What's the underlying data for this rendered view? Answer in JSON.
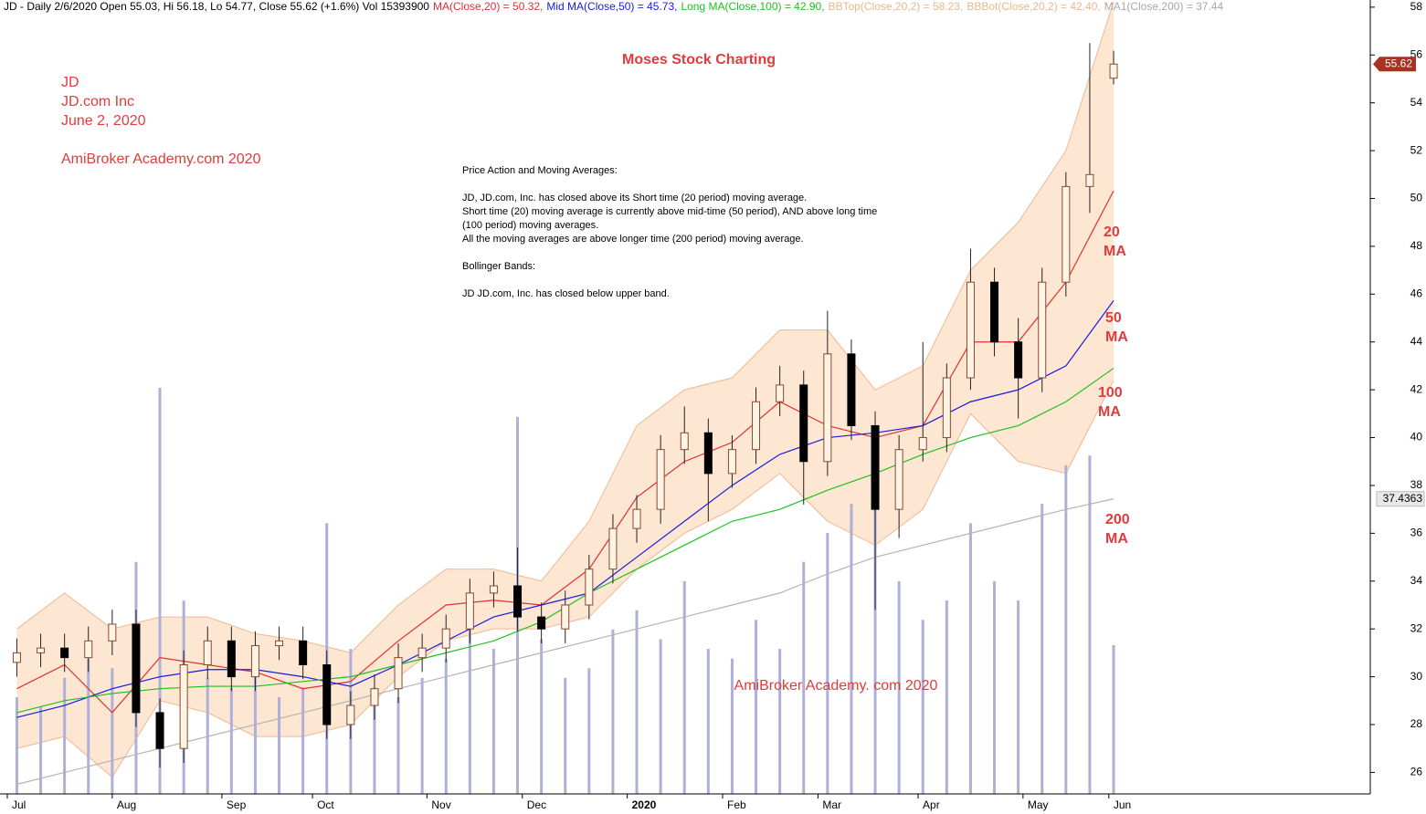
{
  "header": {
    "segments": [
      {
        "text": "JD - Daily 2/6/2020 Open 55.03, Hi 56.18, Lo 54.77, Close 55.62 (+1.6%) Vol 15393900",
        "color": "#000000"
      },
      {
        "text": "MA(Close,20) = 50.32,",
        "color": "#e03030"
      },
      {
        "text": "Mid MA(Close,50) = 45.73,",
        "color": "#1a1ae0"
      },
      {
        "text": "Long MA(Close,100) = 42.90,",
        "color": "#20c020"
      },
      {
        "text": "BBTop(Close,20,2) = 58.23,",
        "color": "#e8b888"
      },
      {
        "text": "BBBot(Close,20,2) = 42.40,",
        "color": "#e8b888"
      },
      {
        "text": "MA1(Close,200) = 37.44",
        "color": "#a8a8a8"
      }
    ]
  },
  "labels": {
    "symbol": "JD",
    "company": "JD.com Inc",
    "date": "June 2, 2020",
    "brand": "AmiBroker Academy.com 2020",
    "title": "Moses Stock Charting",
    "watermark": "AmiBroker Academy. com 2020"
  },
  "notes": [
    "Price Action and Moving Averages:",
    "JD, JD.com, Inc. has closed above its Short time (20 period) moving average.",
    "Short time (20) moving average is currently above mid-time (50 period), AND above long time",
    "(100 period) moving averages.",
    "All the moving averages are above longer time (200 period) moving average.",
    "Bollinger Bands:",
    "JD JD.com, Inc. has closed below upper band."
  ],
  "ma_labels": [
    [
      "20",
      "MA"
    ],
    [
      "50",
      "MA"
    ],
    [
      "100",
      "MA"
    ],
    [
      "200",
      "MA"
    ]
  ],
  "chart_data": {
    "type": "candlestick",
    "x": [
      2,
      7,
      12,
      17,
      22,
      27,
      32,
      37,
      42,
      47,
      52,
      57,
      62,
      67,
      72,
      77,
      82,
      87,
      92,
      97,
      102,
      107,
      112,
      117,
      122,
      127,
      132,
      137,
      142,
      147,
      152,
      157,
      162,
      167,
      172,
      177,
      182,
      187,
      192,
      197,
      202,
      207,
      212,
      217,
      222,
      227,
      232
    ],
    "open": [
      30.6,
      31.0,
      31.2,
      30.8,
      31.5,
      32.2,
      28.5,
      27.0,
      30.5,
      31.5,
      30.0,
      31.3,
      31.5,
      30.5,
      28.0,
      28.8,
      29.5,
      30.8,
      31.2,
      32.0,
      33.5,
      33.8,
      32.5,
      32.0,
      33.0,
      34.5,
      36.2,
      37.0,
      39.5,
      40.2,
      38.5,
      39.5,
      41.5,
      42.2,
      39.0,
      43.5,
      40.5,
      37.0,
      39.5,
      40.0,
      42.5,
      46.5,
      44.0,
      42.5,
      46.5,
      50.5,
      55.03
    ],
    "high": [
      31.6,
      31.8,
      31.8,
      32.1,
      32.8,
      32.8,
      29.1,
      31.1,
      32.1,
      32.1,
      31.9,
      32.1,
      32.1,
      31.1,
      29.4,
      30.1,
      31.4,
      31.8,
      32.6,
      34.1,
      34.4,
      35.4,
      33.1,
      33.6,
      35.1,
      36.8,
      37.6,
      40.1,
      41.3,
      40.8,
      40.1,
      42.1,
      43.0,
      42.8,
      45.3,
      44.1,
      41.1,
      40.1,
      44.0,
      43.1,
      47.9,
      47.1,
      45.0,
      47.1,
      51.1,
      56.5,
      56.18
    ],
    "low": [
      30.0,
      30.4,
      30.2,
      30.2,
      30.9,
      27.9,
      26.2,
      26.4,
      29.9,
      29.4,
      29.4,
      30.7,
      29.9,
      27.4,
      27.4,
      28.2,
      28.9,
      30.2,
      30.6,
      31.4,
      32.9,
      31.9,
      31.4,
      31.4,
      32.4,
      33.9,
      35.6,
      36.4,
      38.9,
      36.5,
      37.9,
      38.9,
      40.9,
      37.2,
      38.4,
      39.9,
      32.8,
      35.8,
      39.0,
      39.4,
      42.0,
      43.4,
      40.8,
      41.9,
      45.9,
      49.4,
      54.77
    ],
    "close": [
      31.0,
      31.2,
      30.8,
      31.5,
      32.2,
      28.5,
      27.0,
      30.5,
      31.5,
      30.0,
      31.3,
      31.5,
      30.5,
      28.0,
      28.8,
      29.5,
      30.8,
      31.2,
      32.0,
      33.5,
      33.8,
      32.5,
      32.0,
      33.0,
      34.5,
      36.2,
      37.0,
      39.5,
      40.2,
      38.5,
      39.5,
      41.5,
      42.2,
      39.0,
      43.5,
      40.5,
      37.0,
      39.5,
      40.0,
      42.5,
      46.5,
      44.0,
      42.5,
      46.5,
      50.5,
      51.0,
      55.62
    ],
    "volume": [
      10000000,
      9000000,
      12000000,
      14000000,
      13000000,
      24000000,
      42000000,
      20000000,
      12000000,
      11000000,
      13000000,
      10000000,
      11000000,
      28000000,
      15000000,
      11000000,
      10000000,
      12000000,
      14000000,
      18000000,
      15000000,
      39000000,
      16000000,
      12000000,
      13000000,
      17000000,
      19000000,
      16000000,
      22000000,
      15000000,
      14000000,
      18000000,
      15000000,
      24000000,
      27000000,
      30000000,
      35000000,
      22000000,
      18000000,
      20000000,
      28000000,
      22000000,
      20000000,
      30000000,
      34000000,
      35000000,
      15393900
    ],
    "volume_color": "#aeb0d8",
    "ma_x": [
      2,
      12,
      22,
      32,
      42,
      52,
      62,
      72,
      82,
      92,
      102,
      112,
      122,
      132,
      142,
      152,
      162,
      172,
      182,
      192,
      202,
      212,
      222,
      232
    ],
    "lines": [
      {
        "color": "#e03030",
        "values": [
          29.5,
          30.5,
          28.5,
          30.8,
          30.5,
          30.2,
          29.5,
          29.8,
          31.5,
          33.0,
          33.2,
          33.0,
          34.5,
          37.5,
          39.0,
          39.8,
          41.5,
          40.5,
          40.0,
          40.5,
          44.0,
          44.0,
          46.5,
          50.32
        ]
      },
      {
        "color": "#1a1ae0",
        "values": [
          28.3,
          28.8,
          29.5,
          30.0,
          30.3,
          30.3,
          30.0,
          29.6,
          30.5,
          31.5,
          32.5,
          33.0,
          33.5,
          35.0,
          36.5,
          38.0,
          39.3,
          40.0,
          40.2,
          40.5,
          41.5,
          42.0,
          43.0,
          45.73
        ]
      },
      {
        "color": "#20c020",
        "values": [
          28.5,
          29.0,
          29.3,
          29.5,
          29.6,
          29.6,
          29.8,
          30.0,
          30.5,
          31.0,
          31.5,
          32.3,
          33.5,
          34.5,
          35.5,
          36.5,
          37.0,
          37.8,
          38.5,
          39.3,
          40.0,
          40.5,
          41.5,
          42.9
        ]
      },
      {
        "color": "#b4b4b4",
        "values": [
          25.5,
          26.0,
          26.5,
          27.0,
          27.5,
          28.0,
          28.5,
          29.0,
          29.5,
          30.0,
          30.5,
          31.0,
          31.5,
          32.0,
          32.5,
          33.0,
          33.5,
          34.3,
          35.0,
          35.5,
          36.0,
          36.5,
          37.0,
          37.44
        ]
      }
    ],
    "band": {
      "color": "#f0b890",
      "fill": "#fde6d2",
      "top": [
        32.0,
        33.5,
        32.0,
        32.5,
        32.5,
        31.8,
        31.5,
        31.0,
        33.0,
        34.5,
        34.5,
        34.0,
        36.5,
        40.5,
        42.0,
        42.5,
        44.5,
        44.5,
        42.0,
        43.0,
        47.0,
        49.0,
        52.0,
        58.23
      ],
      "bottom": [
        27.0,
        27.5,
        25.8,
        29.0,
        28.5,
        27.5,
        27.5,
        28.0,
        30.0,
        31.5,
        32.0,
        32.0,
        32.5,
        34.5,
        36.0,
        37.0,
        38.5,
        36.5,
        35.5,
        37.0,
        41.0,
        39.0,
        38.5,
        42.4
      ]
    },
    "ma200_marker": 37.4363,
    "xlim": [
      0,
      285
    ],
    "xticks": [
      {
        "value": 0,
        "label": "Jul"
      },
      {
        "value": 22,
        "label": "Aug"
      },
      {
        "value": 45,
        "label": "Sep"
      },
      {
        "value": 64,
        "label": "Oct"
      },
      {
        "value": 88,
        "label": "Nov"
      },
      {
        "value": 108,
        "label": "Dec"
      },
      {
        "value": 130,
        "label": "2020"
      },
      {
        "value": 150,
        "label": "Feb"
      },
      {
        "value": 170,
        "label": "Mar"
      },
      {
        "value": 191,
        "label": "Apr"
      },
      {
        "value": 213,
        "label": "May"
      },
      {
        "value": 231,
        "label": "Jun"
      }
    ],
    "ylim": [
      25.1,
      58.3
    ],
    "yticks": [
      26,
      28,
      30,
      32,
      34,
      36,
      38,
      40,
      42,
      44,
      46,
      48,
      50,
      52,
      54,
      56,
      58
    ]
  }
}
